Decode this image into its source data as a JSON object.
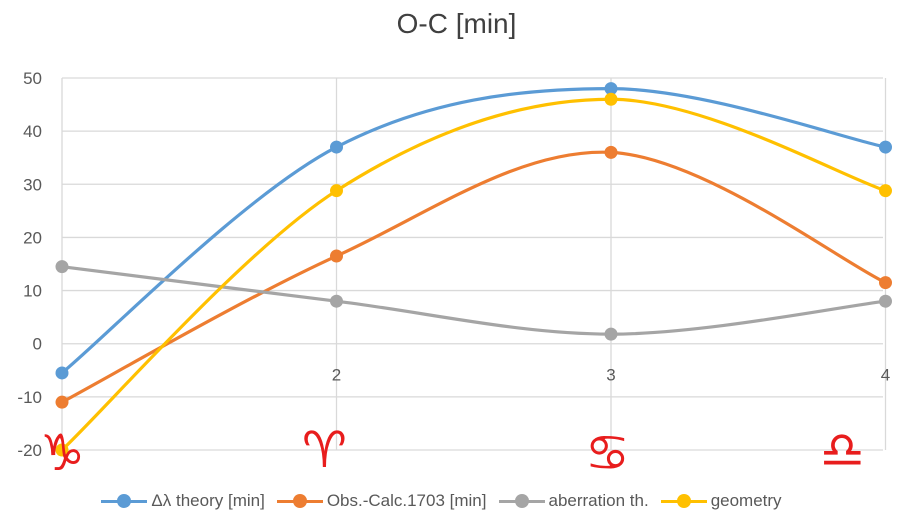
{
  "chart_data": {
    "type": "line",
    "title": "O-C [min]",
    "x": [
      1,
      2,
      3,
      4
    ],
    "x_tick_labels": [
      "",
      "2",
      "3",
      "4"
    ],
    "xlim": [
      1,
      4
    ],
    "ylim": [
      -20,
      50
    ],
    "y_ticks": [
      -20,
      -10,
      0,
      10,
      20,
      30,
      40,
      50
    ],
    "grid": true,
    "smooth": true,
    "legend_position": "bottom",
    "series": [
      {
        "name": "Δλ theory [min]",
        "color": "#5b9bd5",
        "values": [
          -5.5,
          37,
          48,
          37
        ]
      },
      {
        "name": "Obs.-Calc.1703 [min]",
        "color": "#ed7d31",
        "values": [
          -11,
          16.5,
          36,
          11.5
        ]
      },
      {
        "name": "aberration th.",
        "color": "#a5a5a5",
        "values": [
          14.5,
          8,
          1.8,
          8
        ]
      },
      {
        "name": "geometry",
        "color": "#ffc000",
        "values": [
          -20,
          28.8,
          46,
          28.8
        ]
      }
    ],
    "annotations": [
      {
        "text": "♑",
        "x": 1
      },
      {
        "text": "♈",
        "x": 2
      },
      {
        "text": "♋",
        "x": 3
      },
      {
        "text": "♎",
        "x": 4
      }
    ]
  }
}
